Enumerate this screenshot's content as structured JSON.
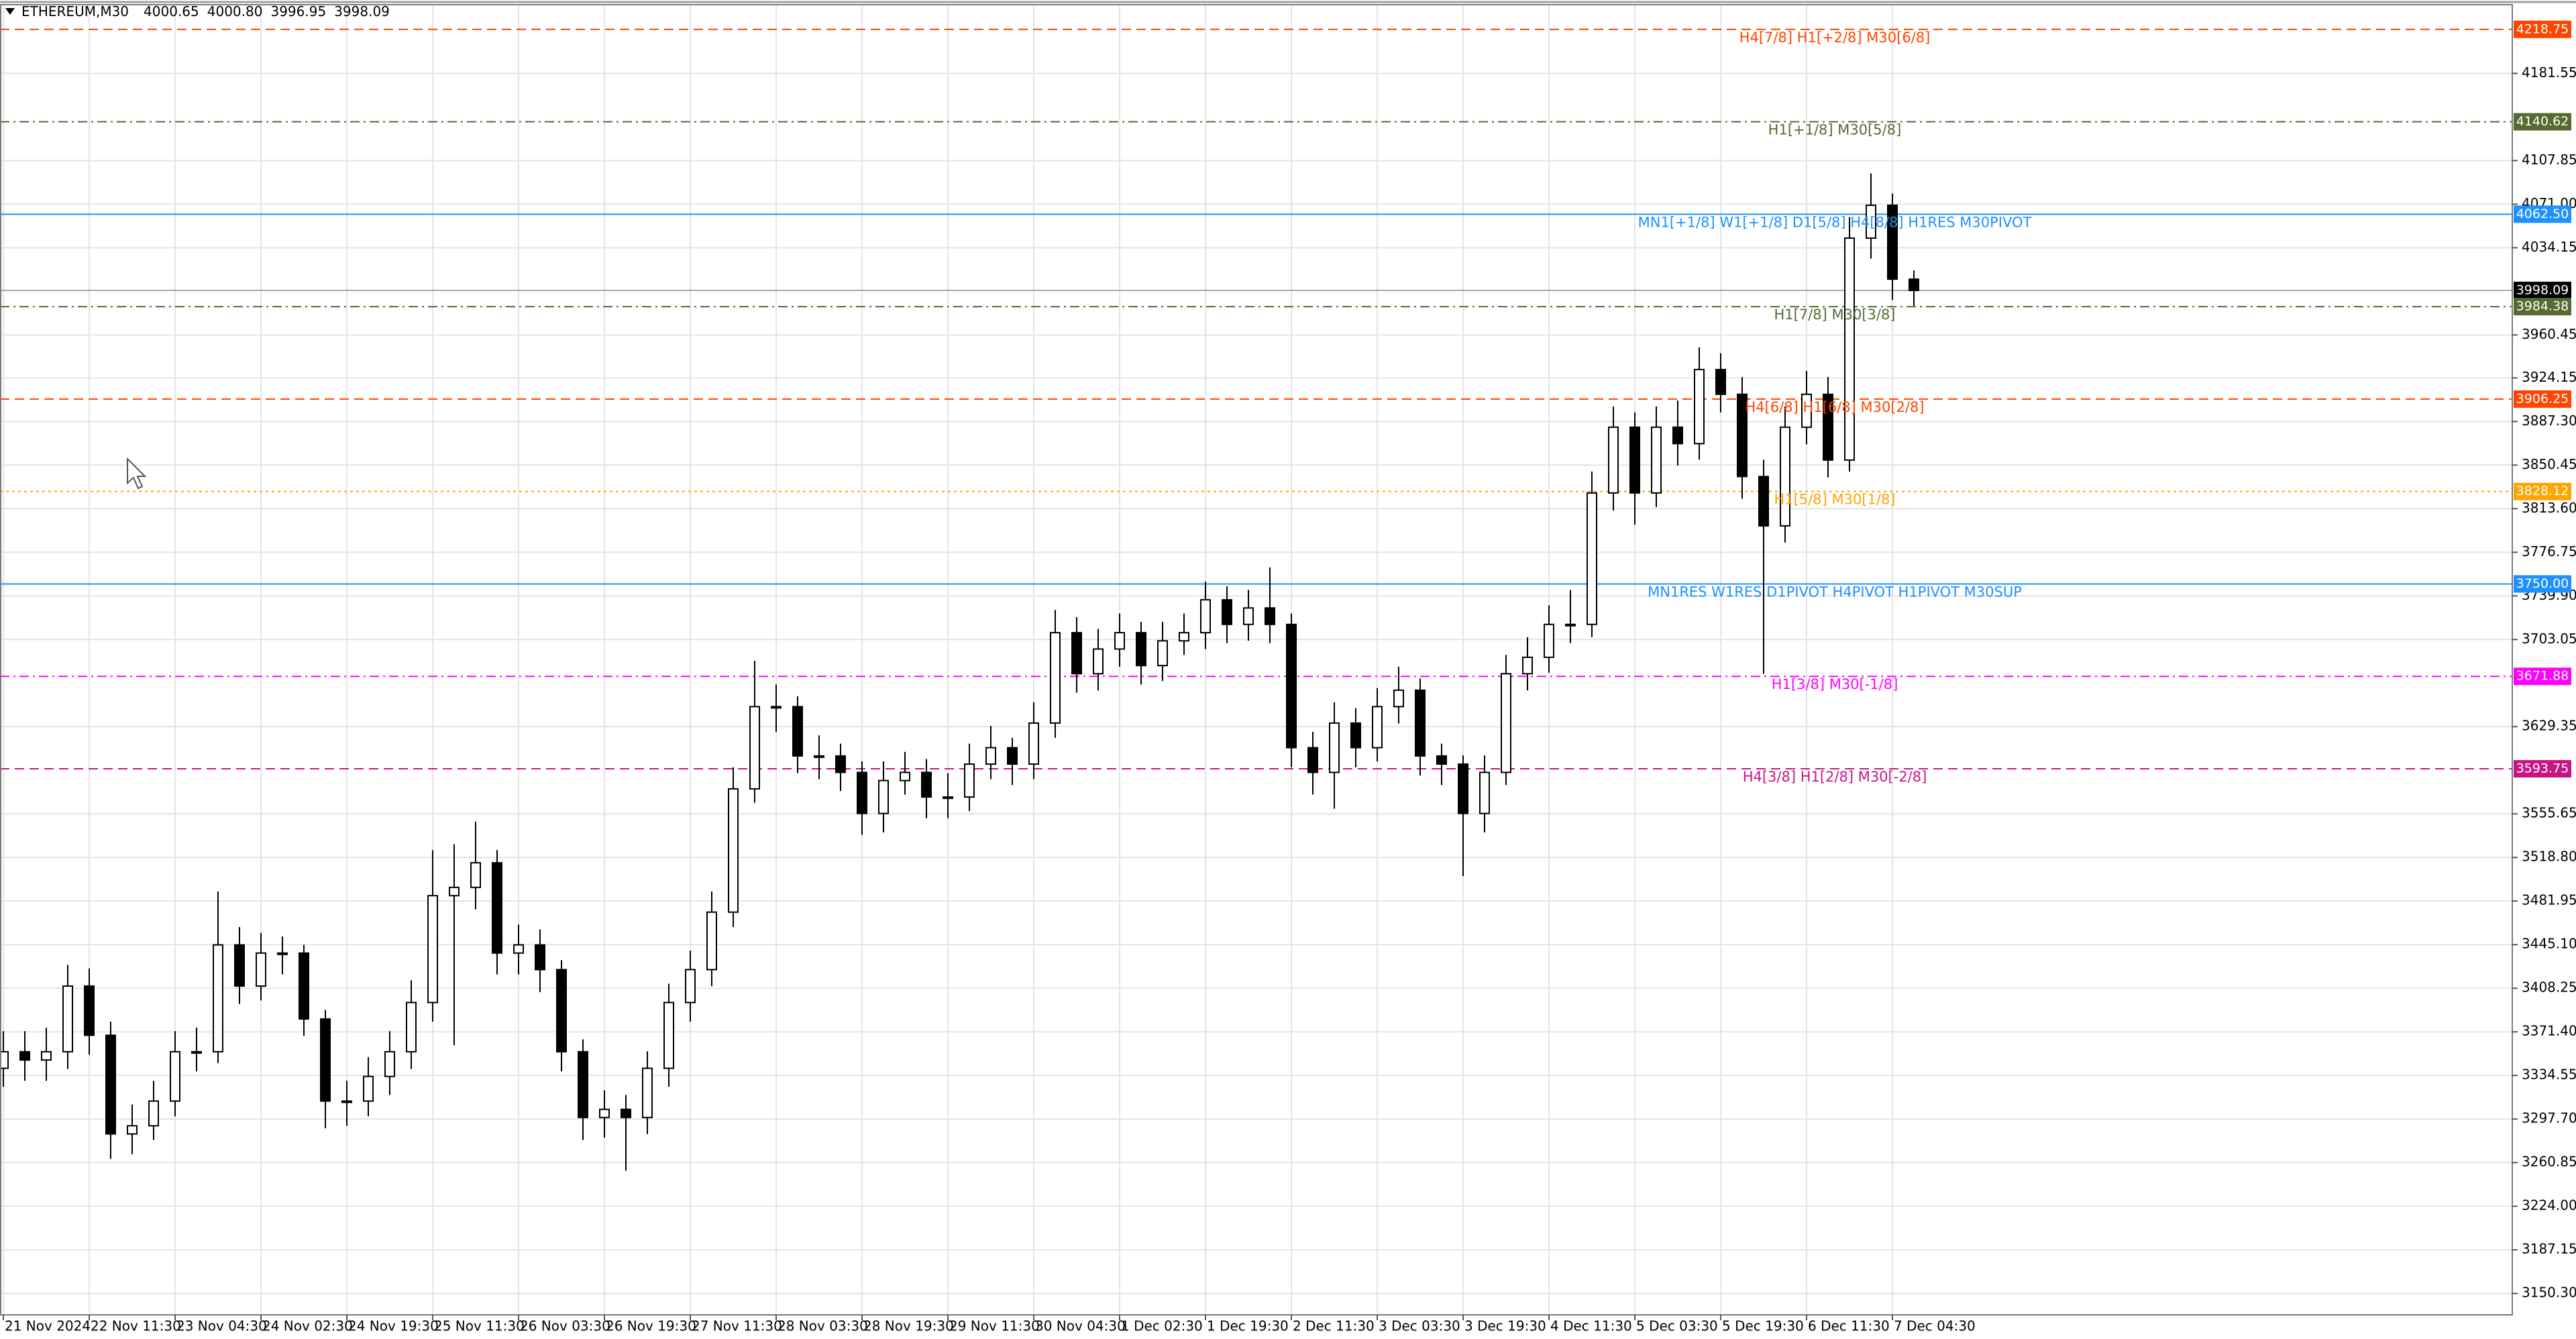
{
  "chart_data": {
    "type": "candlestick",
    "title": "ETHEREUM,M30",
    "quote": [
      "4000.65",
      "4000.80",
      "3996.95",
      "3998.09"
    ],
    "x": [
      "21 Nov 2024",
      null,
      null,
      null,
      "22 Nov 11:30",
      null,
      null,
      null,
      "23 Nov 04:30",
      null,
      null,
      null,
      "24 Nov 02:30",
      null,
      null,
      null,
      "24 Nov 19:30",
      null,
      null,
      null,
      "25 Nov 11:30",
      null,
      null,
      null,
      "26 Nov 03:30",
      null,
      null,
      null,
      "26 Nov 19:30",
      null,
      null,
      null,
      "27 Nov 11:30",
      null,
      null,
      null,
      "28 Nov 03:30",
      null,
      null,
      null,
      "28 Nov 19:30",
      null,
      null,
      null,
      "29 Nov 11:30",
      null,
      null,
      null,
      "30 Nov 04:30",
      null,
      null,
      null,
      "1 Dec 02:30",
      null,
      null,
      null,
      "1 Dec 19:30",
      null,
      null,
      null,
      "2 Dec 11:30",
      null,
      null,
      null,
      "3 Dec 03:30",
      null,
      null,
      null,
      "3 Dec 19:30",
      null,
      null,
      null,
      "4 Dec 11:30",
      null,
      null,
      null,
      "5 Dec 03:30",
      null,
      null,
      null,
      "5 Dec 19:30",
      null,
      null,
      null,
      "6 Dec 11:30",
      null,
      null,
      null,
      "7 Dec 04:30",
      null
    ],
    "open": [
      3340.6,
      3354.6,
      3347.6,
      3354.6,
      3410.1,
      3368.5,
      3285.1,
      3292.0,
      3312.9,
      3354.6,
      3354.6,
      3444.9,
      3410.1,
      3438.0,
      3438.0,
      3382.3,
      3312.9,
      3312.9,
      3333.7,
      3354.6,
      3396.2,
      3486.5,
      3493.5,
      3514.3,
      3438.0,
      3444.9,
      3424.0,
      3354.6,
      3299.0,
      3305.9,
      3299.0,
      3340.6,
      3396.2,
      3424.0,
      3472.6,
      3576.8,
      3646.3,
      3646.3,
      3604.6,
      3604.6,
      3590.7,
      3556.0,
      3583.8,
      3590.7,
      3569.9,
      3569.9,
      3597.7,
      3611.6,
      3597.7,
      3632.4,
      3708.8,
      3674.1,
      3695.0,
      3708.8,
      3681.0,
      3701.9,
      3708.8,
      3736.6,
      3715.8,
      3729.7,
      3715.8,
      3611.6,
      3590.7,
      3632.4,
      3611.6,
      3646.3,
      3660.2,
      3604.6,
      3597.7,
      3556.0,
      3590.7,
      3674.1,
      3688.0,
      3715.8,
      3715.8,
      3826.9,
      3882.5,
      3826.9,
      3882.5,
      3868.6,
      3931.2,
      3910.3,
      3840.8,
      3799.1,
      3882.5,
      3910.3,
      3854.7,
      4042.3,
      4070.1,
      4007.6
    ],
    "high": [
      3372,
      3372,
      3375,
      3428,
      3425,
      3380,
      3310,
      3330,
      3372,
      3375,
      3490,
      3460,
      3455,
      3452,
      3445,
      3390,
      3330,
      3350,
      3372,
      3415,
      3525,
      3530,
      3549,
      3525,
      3462,
      3458,
      3432,
      3365,
      3322,
      3318,
      3355,
      3412,
      3440,
      3490,
      3595,
      3685,
      3665,
      3655,
      3622,
      3615,
      3600,
      3600,
      3608,
      3602,
      3590,
      3615,
      3630,
      3620,
      3650,
      3728,
      3722,
      3712,
      3725,
      3718,
      3718,
      3725,
      3752,
      3748,
      3745,
      3764,
      3725,
      3625,
      3650,
      3645,
      3662,
      3680,
      3670,
      3615,
      3605,
      3605,
      3690,
      3705,
      3732,
      3745,
      3845,
      3900,
      3895,
      3900,
      3905,
      3950,
      3945,
      3925,
      3855,
      3900,
      3930,
      3925,
      4060,
      4097,
      4080,
      4015
    ],
    "low": [
      3325,
      3330,
      3330,
      3340,
      3352,
      3264,
      3268,
      3280,
      3300,
      3338,
      3345,
      3395,
      3398,
      3420,
      3368,
      3290,
      3292,
      3300,
      3318,
      3340,
      3380,
      3360,
      3475,
      3420,
      3420,
      3405,
      3338,
      3280,
      3282,
      3254,
      3285,
      3325,
      3380,
      3410,
      3460,
      3565,
      3625,
      3590,
      3585,
      3575,
      3538,
      3540,
      3572,
      3552,
      3552,
      3558,
      3585,
      3580,
      3585,
      3620,
      3658,
      3660,
      3680,
      3665,
      3668,
      3690,
      3695,
      3700,
      3702,
      3700,
      3595,
      3572,
      3560,
      3595,
      3600,
      3632,
      3588,
      3580,
      3503,
      3540,
      3580,
      3660,
      3675,
      3700,
      3705,
      3812,
      3800,
      3815,
      3850,
      3855,
      3895,
      3822,
      3674,
      3785,
      3868,
      3840,
      3845,
      4025,
      3990,
      3985
    ],
    "close": [
      3354.6,
      3347.6,
      3354.6,
      3410.1,
      3368.5,
      3285.1,
      3292.0,
      3312.9,
      3354.6,
      3354.6,
      3444.9,
      3410.1,
      3438.0,
      3438.0,
      3382.3,
      3312.9,
      3312.9,
      3333.7,
      3354.6,
      3396.2,
      3486.5,
      3493.5,
      3514.3,
      3438.0,
      3444.9,
      3424.0,
      3354.6,
      3299.0,
      3305.9,
      3299.0,
      3340.6,
      3396.2,
      3424.0,
      3472.6,
      3576.8,
      3646.3,
      3646.3,
      3604.6,
      3604.6,
      3590.7,
      3556.0,
      3583.8,
      3590.7,
      3569.9,
      3569.9,
      3597.7,
      3611.6,
      3597.7,
      3632.4,
      3708.8,
      3674.1,
      3695.0,
      3708.8,
      3681.0,
      3701.9,
      3708.8,
      3736.6,
      3715.8,
      3729.7,
      3715.8,
      3611.6,
      3590.7,
      3632.4,
      3611.6,
      3646.3,
      3660.2,
      3604.6,
      3597.7,
      3556.0,
      3590.7,
      3674.1,
      3688.0,
      3715.8,
      3715.8,
      3826.9,
      3882.5,
      3826.9,
      3882.5,
      3868.6,
      3931.2,
      3910.3,
      3840.8,
      3799.1,
      3882.5,
      3910.3,
      3854.7,
      4042.3,
      4070.1,
      4007.6,
      3998.09
    ],
    "up_color": "#ffffff",
    "down_color": "#000000",
    "outline_color": "#000000",
    "ylim": [
      3132.2,
      4239.6
    ],
    "yticks": [
      4181.55,
      4107.85,
      {
        "value": 4071,
        "label": "4071.00"
      },
      4034.15,
      3960.45,
      3924.15,
      {
        "value": 3887.3,
        "label": "3887.30"
      },
      3850.45,
      {
        "value": 3813.6,
        "label": "3813.60"
      },
      3776.75,
      {
        "value": 3739.9,
        "label": "3739.90"
      },
      3703.05,
      3629.35,
      3555.65,
      {
        "value": 3518.8,
        "label": "3518.80"
      },
      3481.95,
      {
        "value": 3445.1,
        "label": "3445.10"
      },
      3408.25,
      {
        "value": 3371.4,
        "label": "3371.40"
      },
      3334.55,
      {
        "value": 3297.7,
        "label": "3297.70"
      },
      3260.85,
      {
        "value": 3224,
        "label": "3224.00"
      },
      3187.15,
      {
        "value": 3150.3,
        "label": "3150.30"
      }
    ],
    "grid": true,
    "levels": [
      {
        "label": "H4[7/8] H1[+2/8] M30[6/8]",
        "price": 4218.75,
        "color": "#ff4500",
        "style": "dashed"
      },
      {
        "label": "H1[+1/8] M30[5/8]",
        "price": 4140.62,
        "color": "#556b2f",
        "style": "dashdot"
      },
      {
        "label": "MN1[+1/8] W1[+1/8] D1[5/8] H4[8/8] H1RES M30PIVOT",
        "price": {
          "value": 4062.5,
          "label": "4062.50"
        },
        "color": "#1e90ff",
        "style": "solid"
      },
      {
        "price": 3998.09,
        "color": "#a9a9a9",
        "tag_color": "#000000",
        "style": "solid"
      },
      {
        "label": "H1[7/8] M30[3/8]",
        "price": 3984.38,
        "color": "#556b2f",
        "style": "dashdot"
      },
      {
        "label": "H4[6/8] H1[6/8] M30[2/8]",
        "price": 3906.25,
        "color": "#ff4500",
        "style": "dashed"
      },
      {
        "label": "H1[5/8] M30[1/8]",
        "price": 3828.12,
        "color": "#ffa500",
        "style": "dotted"
      },
      {
        "label": "MN1RES W1RES D1PIVOT H4PIVOT H1PIVOT M30SUP",
        "price": {
          "value": 3750,
          "label": "3750.00"
        },
        "color": "#1e90ff",
        "style": "solid"
      },
      {
        "label": "H1[3/8] M30[-1/8]",
        "price": 3671.88,
        "color": "#ff00ff",
        "style": "dashdot"
      },
      {
        "label": "H4[3/8] H1[2/8] M30[-2/8]",
        "price": 3593.75,
        "color": "#c71585",
        "style": "dashed"
      }
    ]
  }
}
